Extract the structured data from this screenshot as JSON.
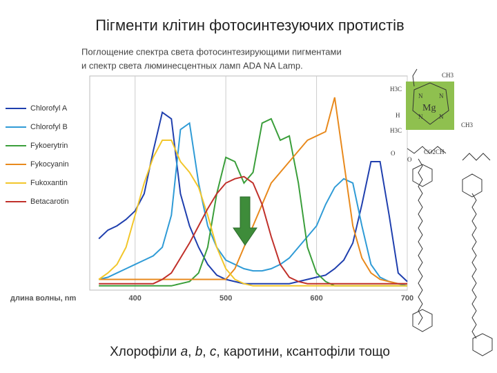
{
  "slide_title": "Пігменти клітин фотосинтезуючих протистів",
  "caption": [
    "Хлорофіли ",
    "a",
    ", ",
    "b",
    ", ",
    "c",
    ", каротини, ксантофіли тощо"
  ],
  "structure_labels": [
    "CH3",
    "H3C",
    "Mg",
    "N",
    "N",
    "N",
    "N",
    "H",
    "H3C",
    "CH3",
    "O",
    "CO2CH",
    "O"
  ],
  "chart_data": {
    "type": "line",
    "title": [
      "Поглощение спектра света фотосинтезирующими пигментами",
      "и спектр света люминесцентных ламп ADA NA Lamp."
    ],
    "x_label": "длина волны, nm",
    "x": [
      360,
      370,
      380,
      390,
      400,
      410,
      420,
      430,
      440,
      450,
      460,
      470,
      480,
      490,
      500,
      510,
      520,
      530,
      540,
      550,
      560,
      570,
      580,
      590,
      600,
      610,
      620,
      630,
      640,
      650,
      660,
      670,
      680,
      690,
      700
    ],
    "xlim": [
      350,
      700
    ],
    "ylim": [
      0,
      100
    ],
    "xticks": [
      400,
      500,
      600,
      700
    ],
    "grid": true,
    "series": [
      {
        "name": "Chlorofyl A",
        "color": "#1f3fae",
        "values": [
          24,
          28,
          30,
          33,
          37,
          45,
          65,
          83,
          80,
          45,
          30,
          20,
          12,
          7,
          5,
          4,
          3,
          3,
          3,
          3,
          3,
          3,
          4,
          5,
          6,
          7,
          10,
          14,
          22,
          40,
          60,
          60,
          35,
          8,
          4
        ]
      },
      {
        "name": "Chlorofyl B",
        "color": "#2f9bd6",
        "values": [
          5,
          6,
          8,
          10,
          12,
          14,
          16,
          20,
          35,
          75,
          78,
          50,
          30,
          20,
          14,
          12,
          10,
          9,
          9,
          10,
          12,
          15,
          20,
          25,
          30,
          40,
          48,
          52,
          50,
          30,
          12,
          6,
          4,
          3,
          2
        ]
      },
      {
        "name": "Fykoerytrin",
        "color": "#3a9e3a",
        "values": [
          2,
          2,
          2,
          2,
          2,
          2,
          2,
          2,
          2,
          3,
          4,
          8,
          20,
          45,
          62,
          60,
          50,
          55,
          78,
          80,
          70,
          72,
          50,
          20,
          8,
          4,
          2,
          2,
          2,
          2,
          2,
          2,
          2,
          2,
          2
        ]
      },
      {
        "name": "Fykocyanin",
        "color": "#e8891c",
        "values": [
          5,
          5,
          5,
          5,
          5,
          5,
          5,
          5,
          5,
          5,
          5,
          5,
          5,
          5,
          5,
          10,
          20,
          30,
          40,
          50,
          55,
          60,
          65,
          70,
          72,
          74,
          90,
          60,
          30,
          15,
          8,
          5,
          4,
          3,
          3
        ]
      },
      {
        "name": "Fukoxantin",
        "color": "#f2c62a",
        "values": [
          5,
          8,
          12,
          20,
          35,
          50,
          62,
          70,
          70,
          60,
          55,
          48,
          35,
          20,
          10,
          5,
          3,
          2,
          2,
          2,
          2,
          2,
          2,
          2,
          2,
          2,
          2,
          2,
          2,
          2,
          2,
          2,
          2,
          2,
          2
        ]
      },
      {
        "name": "Betacarotin",
        "color": "#c0302a",
        "values": [
          3,
          3,
          3,
          3,
          3,
          3,
          3,
          5,
          8,
          15,
          22,
          30,
          38,
          45,
          50,
          52,
          53,
          50,
          40,
          25,
          12,
          6,
          4,
          3,
          3,
          3,
          3,
          3,
          3,
          3,
          3,
          3,
          3,
          3,
          3
        ]
      }
    ]
  }
}
